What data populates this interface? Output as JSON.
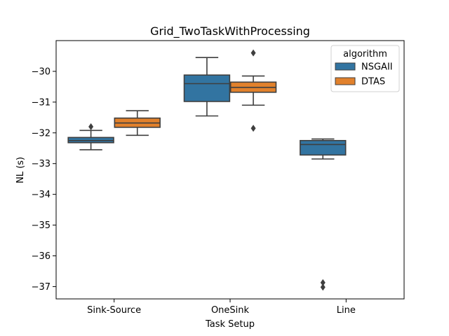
{
  "chart_data": {
    "type": "boxplot",
    "title": "Grid_TwoTaskWithProcessing",
    "xlabel": "Task Setup",
    "ylabel": "NL (s)",
    "ylim": [
      -37.4,
      -29.0
    ],
    "yticks": [
      -30,
      -31,
      -32,
      -33,
      -34,
      -35,
      -36,
      -37
    ],
    "ytick_labels": [
      "−30",
      "−31",
      "−32",
      "−33",
      "−34",
      "−35",
      "−36",
      "−37"
    ],
    "categories": [
      "Sink-Source",
      "OneSink",
      "Line"
    ],
    "grid": false,
    "legend": {
      "title": "algorithm",
      "placement": "top-right"
    },
    "series": [
      {
        "name": "NSGAII",
        "color": "#3274a1",
        "boxes": [
          {
            "whisker_low": -32.55,
            "q1": -32.32,
            "median": -32.25,
            "q3": -32.15,
            "whisker_high": -31.92,
            "outliers": [
              -31.8
            ]
          },
          {
            "whisker_low": -31.45,
            "q1": -30.98,
            "median": -30.4,
            "q3": -30.12,
            "whisker_high": -29.55,
            "outliers": []
          },
          {
            "whisker_low": -32.85,
            "q1": -32.72,
            "median": -32.38,
            "q3": -32.25,
            "whisker_high": -32.2,
            "outliers": [
              -36.87,
              -37.02
            ]
          }
        ]
      },
      {
        "name": "DTAS",
        "color": "#e1812c",
        "boxes": [
          {
            "whisker_low": -32.08,
            "q1": -31.82,
            "median": -31.68,
            "q3": -31.52,
            "whisker_high": -31.28,
            "outliers": []
          },
          {
            "whisker_low": -31.1,
            "q1": -30.68,
            "median": -30.52,
            "q3": -30.35,
            "whisker_high": -30.15,
            "outliers": [
              -29.4,
              -31.85
            ]
          },
          null
        ]
      }
    ]
  }
}
